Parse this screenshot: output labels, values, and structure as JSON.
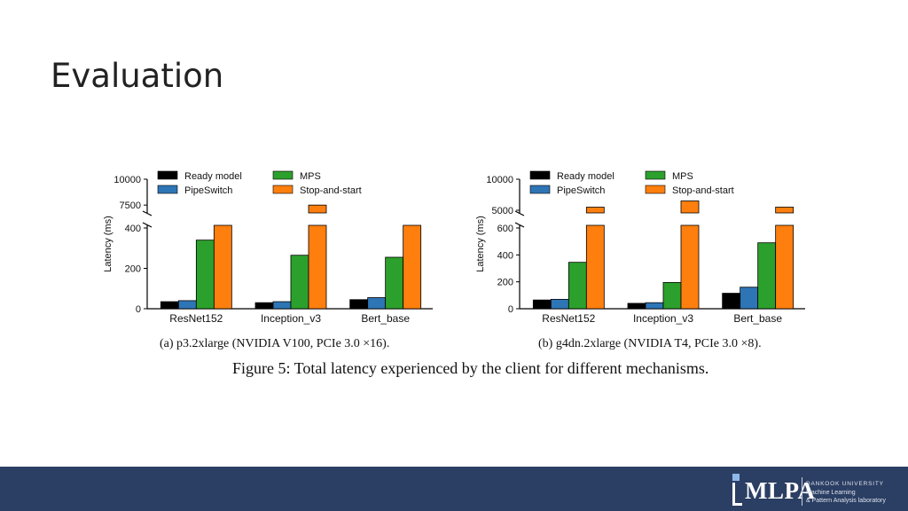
{
  "slide": {
    "title": "Evaluation"
  },
  "figure_caption": "Figure 5: Total latency experienced by the client for different mechanisms.",
  "logo": {
    "text": "MLPA",
    "university": "DANKOOK UNIVERSITY",
    "line1": "Machine Learning",
    "line2": "& Pattern Analysis laboratory"
  },
  "colors": {
    "Ready model": "#000000",
    "PipeSwitch": "#2e75b6",
    "MPS": "#2ca02c",
    "Stop-and-start": "#ff7f0e",
    "footer": "#2b3e63"
  },
  "chart_data": [
    {
      "type": "bar",
      "caption": "(a) p3.2xlarge (NVIDIA V100, PCIe 3.0 ×16).",
      "ylabel": "Latency (ms)",
      "categories": [
        "ResNet152",
        "Inception_v3",
        "Bert_base"
      ],
      "broken_axis": true,
      "ylim_lower": [
        0,
        400
      ],
      "yticks_lower": [
        0,
        200,
        400
      ],
      "ylim_upper": [
        7000,
        10000
      ],
      "yticks_upper": [
        7500,
        10000
      ],
      "legend": [
        "Ready model",
        "PipeSwitch",
        "MPS",
        "Stop-and-start"
      ],
      "legend_position": "top",
      "series": [
        {
          "name": "Ready model",
          "values": [
            35,
            30,
            45
          ]
        },
        {
          "name": "PipeSwitch",
          "values": [
            40,
            35,
            55
          ]
        },
        {
          "name": "MPS",
          "values": [
            340,
            265,
            255
          ]
        },
        {
          "name": "Stop-and-start",
          "values": [
            6500,
            7500,
            6500
          ]
        }
      ]
    },
    {
      "type": "bar",
      "caption": "(b) g4dn.2xlarge (NVIDIA T4, PCIe 3.0 ×8).",
      "ylabel": "Latency (ms)",
      "categories": [
        "ResNet152",
        "Inception_v3",
        "Bert_base"
      ],
      "broken_axis": true,
      "ylim_lower": [
        0,
        600
      ],
      "yticks_lower": [
        0,
        200,
        400,
        600
      ],
      "ylim_upper": [
        5000,
        10000
      ],
      "yticks_upper": [
        5000,
        10000
      ],
      "legend": [
        "Ready model",
        "PipeSwitch",
        "MPS",
        "Stop-and-start"
      ],
      "legend_position": "top",
      "series": [
        {
          "name": "Ready model",
          "values": [
            65,
            40,
            115
          ]
        },
        {
          "name": "PipeSwitch",
          "values": [
            70,
            45,
            160
          ]
        },
        {
          "name": "MPS",
          "values": [
            345,
            195,
            490
          ]
        },
        {
          "name": "Stop-and-start",
          "values": [
            5500,
            6500,
            5500
          ]
        }
      ]
    }
  ]
}
